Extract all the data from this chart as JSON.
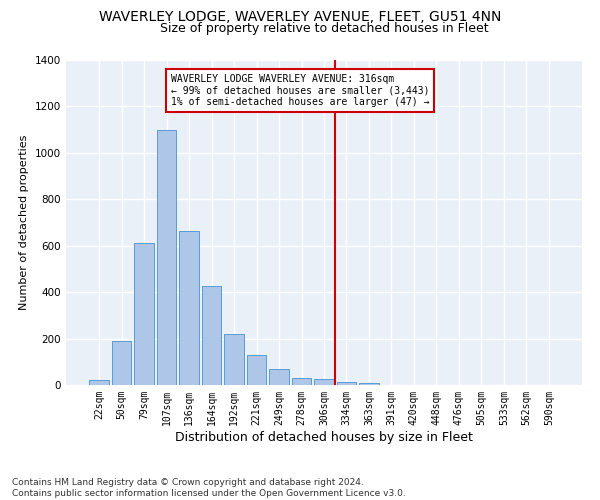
{
  "title": "WAVERLEY LODGE, WAVERLEY AVENUE, FLEET, GU51 4NN",
  "subtitle": "Size of property relative to detached houses in Fleet",
  "xlabel": "Distribution of detached houses by size in Fleet",
  "ylabel": "Number of detached properties",
  "bar_values": [
    22,
    190,
    610,
    1100,
    665,
    425,
    220,
    130,
    70,
    30,
    25,
    15,
    10,
    0,
    0,
    0,
    0,
    0,
    0,
    0,
    0
  ],
  "bar_labels": [
    "22sqm",
    "50sqm",
    "79sqm",
    "107sqm",
    "136sqm",
    "164sqm",
    "192sqm",
    "221sqm",
    "249sqm",
    "278sqm",
    "306sqm",
    "334sqm",
    "363sqm",
    "391sqm",
    "420sqm",
    "448sqm",
    "476sqm",
    "505sqm",
    "533sqm",
    "562sqm",
    "590sqm"
  ],
  "bar_color": "#aec6e8",
  "bar_edge_color": "#5b9bd5",
  "vline_x_idx": 10,
  "vline_color": "#cc0000",
  "annotation_text": "WAVERLEY LODGE WAVERLEY AVENUE: 316sqm\n← 99% of detached houses are smaller (3,443)\n1% of semi-detached houses are larger (47) →",
  "annotation_box_color": "#ffffff",
  "annotation_box_edge_color": "#cc0000",
  "ylim": [
    0,
    1400
  ],
  "yticks": [
    0,
    200,
    400,
    600,
    800,
    1000,
    1200,
    1400
  ],
  "background_color": "#eaf0f8",
  "grid_color": "#ffffff",
  "footer": "Contains HM Land Registry data © Crown copyright and database right 2024.\nContains public sector information licensed under the Open Government Licence v3.0.",
  "title_fontsize": 10,
  "subtitle_fontsize": 9,
  "xlabel_fontsize": 9,
  "ylabel_fontsize": 8,
  "tick_fontsize": 7,
  "annotation_fontsize": 7,
  "footer_fontsize": 6.5
}
